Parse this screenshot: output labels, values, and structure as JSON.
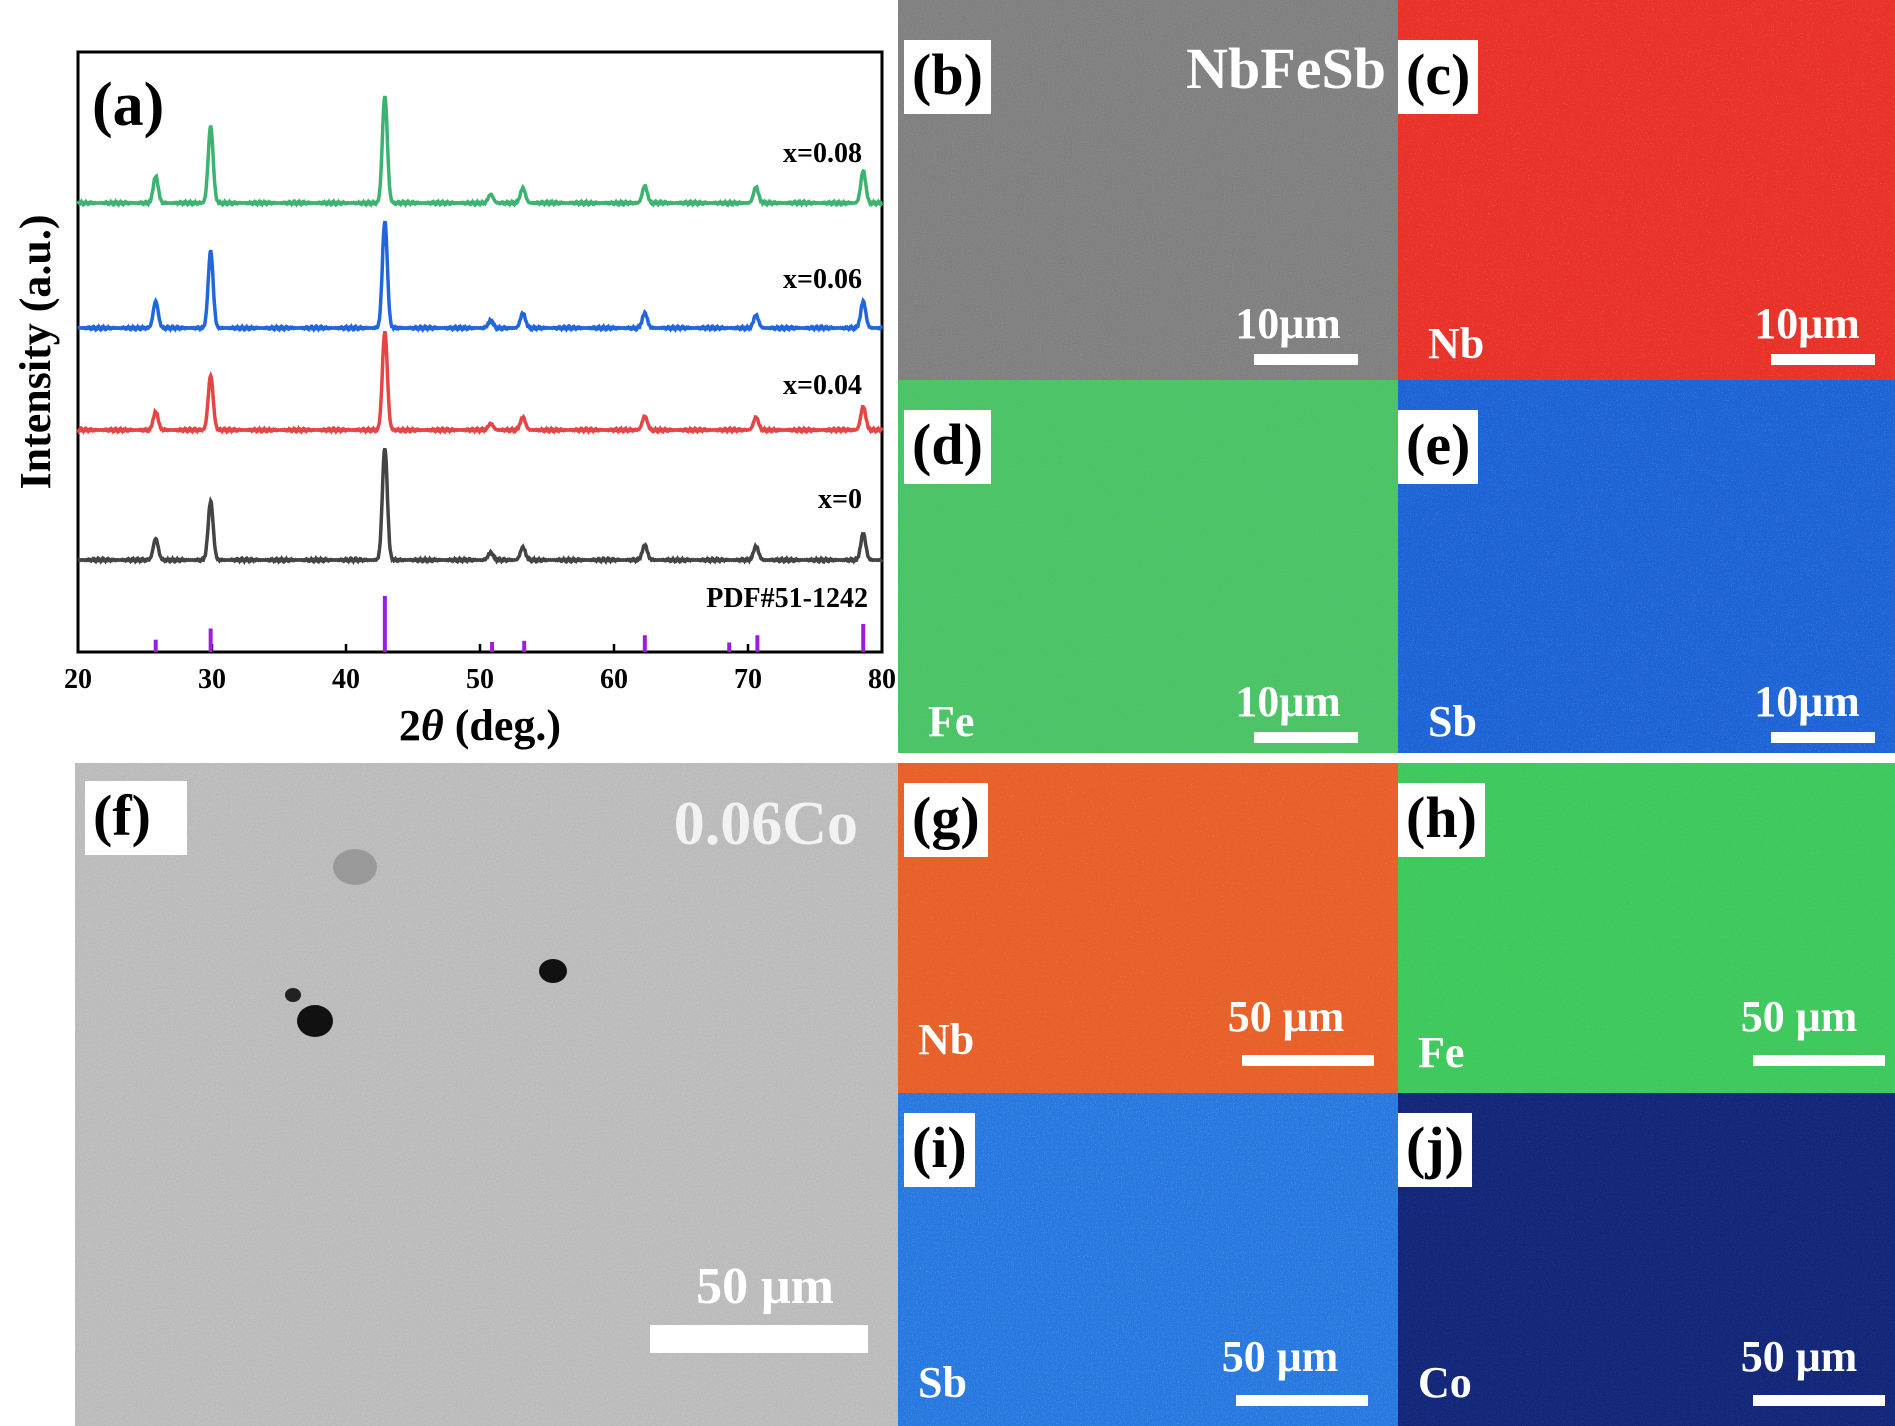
{
  "chart_data": {
    "type": "line",
    "panel_label": "(a)",
    "xlabel_prefix": "2",
    "xlabel_var": "θ",
    "xlabel_suffix": " (deg.)",
    "ylabel": "Intensity (a.u.)",
    "xlim": [
      20,
      80
    ],
    "x_ticks": [
      20,
      30,
      40,
      50,
      60,
      70,
      80
    ],
    "peaks": [
      25.8,
      29.9,
      42.9,
      50.8,
      53.2,
      62.3,
      70.6,
      78.6
    ],
    "series": [
      {
        "name": "x=0.08",
        "color": "#3cb371",
        "heights": [
          0.25,
          0.72,
          1.0,
          0.08,
          0.14,
          0.16,
          0.15,
          0.3
        ]
      },
      {
        "name": "x=0.06",
        "color": "#2266dd",
        "heights": [
          0.25,
          0.72,
          1.0,
          0.07,
          0.14,
          0.14,
          0.12,
          0.25
        ]
      },
      {
        "name": "x=0.04",
        "color": "#e64545",
        "heights": [
          0.17,
          0.51,
          0.92,
          0.06,
          0.12,
          0.13,
          0.12,
          0.22
        ]
      },
      {
        "name": "x=0",
        "color": "#444444",
        "heights": [
          0.2,
          0.55,
          1.05,
          0.07,
          0.12,
          0.14,
          0.13,
          0.25
        ]
      }
    ],
    "reference": {
      "name": "PDF#51-1242",
      "color": "#9a1de0",
      "x": [
        25.8,
        29.9,
        42.9,
        50.9,
        53.3,
        62.3,
        68.6,
        70.7,
        78.6
      ],
      "intensity": [
        0.22,
        0.42,
        1.0,
        0.18,
        0.2,
        0.3,
        0.17,
        0.3,
        0.5
      ]
    }
  },
  "panels": {
    "b": {
      "label": "(b)",
      "title": "NbFeSb",
      "scale": "10μm"
    },
    "c": {
      "label": "(c)",
      "element": "Nb",
      "scale": "10μm",
      "color": "#e8322a"
    },
    "d": {
      "label": "(d)",
      "element": "Fe",
      "scale": "10μm",
      "color": "#4dc460"
    },
    "e": {
      "label": "(e)",
      "element": "Sb",
      "scale": "10μm",
      "color": "#1f63d6"
    },
    "f": {
      "label": "(f)",
      "title": "0.06Co",
      "scale": "50 μm"
    },
    "g": {
      "label": "(g)",
      "element": "Nb",
      "scale": "50 μm",
      "color": "#e8602a"
    },
    "h": {
      "label": "(h)",
      "element": "Fe",
      "scale": "50 μm",
      "color": "#3fc95a"
    },
    "i": {
      "label": "(i)",
      "element": "Sb",
      "scale": "50 μm",
      "color": "#2a78df"
    },
    "j": {
      "label": "(j)",
      "element": "Co",
      "scale": "50 μm",
      "color": "#13277a"
    }
  }
}
